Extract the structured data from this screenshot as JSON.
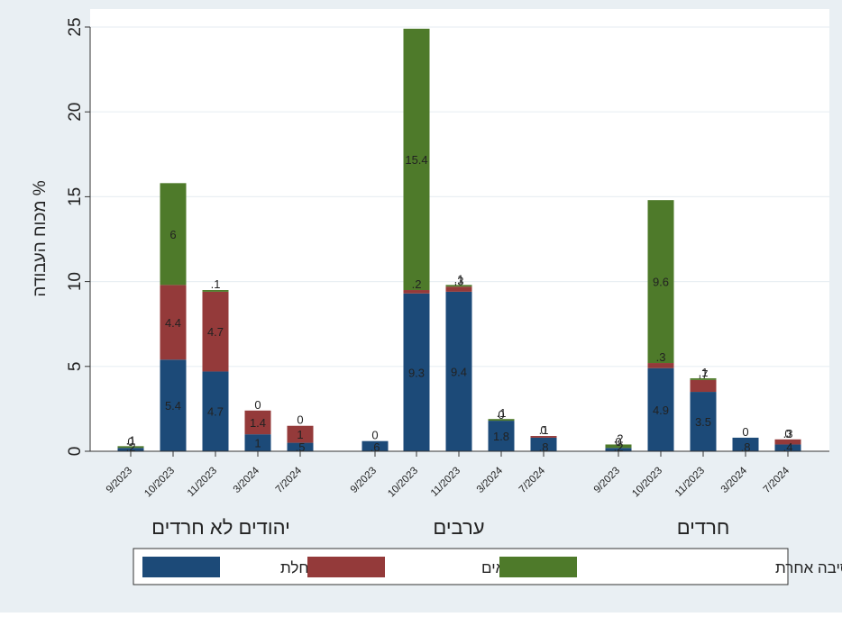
{
  "chart_data": {
    "type": "bar",
    "stacked": true,
    "ylabel": "% מכוח העבודה",
    "xlabel": "",
    "ylim": [
      0,
      25
    ],
    "yticks": [
      0,
      5,
      10,
      15,
      20,
      25
    ],
    "grid": true,
    "legend_position": "bottom",
    "colors": {
      "background": "#e9eff3",
      "plot_background": "#ffffff",
      "gridline": "#e9eff3",
      "label_text": "#222222"
    },
    "series": [
      {
        "name": "בחלת",
        "color": "#1c4a78"
      },
      {
        "name": "במילואים",
        "color": "#943a3a"
      },
      {
        "name": "נעדרים בגלל סיבה אחרת",
        "color": "#4e7a2a"
      }
    ],
    "groups": [
      {
        "name": "יהודים לא חרדים",
        "bars": [
          {
            "category": "9/2023",
            "values": [
              0.2,
              0,
              0.1
            ],
            "labels": [
              ".2",
              "0",
              ".1"
            ]
          },
          {
            "category": "10/2023",
            "values": [
              5.4,
              4.4,
              6
            ],
            "labels": [
              "5.4",
              "4.4",
              "6"
            ]
          },
          {
            "category": "11/2023",
            "values": [
              4.7,
              4.7,
              0.1
            ],
            "labels": [
              "4.7",
              "4.7",
              ".1"
            ]
          },
          {
            "category": "3/2024",
            "values": [
              1,
              1.4,
              0
            ],
            "labels": [
              "1",
              "1.4",
              "0"
            ]
          },
          {
            "category": "7/2024",
            "values": [
              0.5,
              1,
              0
            ],
            "labels": [
              ".5",
              "1",
              "0"
            ]
          }
        ]
      },
      {
        "name": "ערבים",
        "bars": [
          {
            "category": "9/2023",
            "values": [
              0.6,
              0,
              0
            ],
            "labels": [
              ".6",
              "0",
              ""
            ]
          },
          {
            "category": "10/2023",
            "values": [
              9.3,
              0.2,
              15.4
            ],
            "labels": [
              "9.3",
              ".2",
              "15.4"
            ]
          },
          {
            "category": "11/2023",
            "values": [
              9.4,
              0.3,
              0.1
            ],
            "labels": [
              "9.4",
              ".3",
              ".1"
            ]
          },
          {
            "category": "3/2024",
            "values": [
              1.8,
              0,
              0.1
            ],
            "labels": [
              "1.8",
              "0",
              ".1"
            ]
          },
          {
            "category": "7/2024",
            "values": [
              0.8,
              0.1,
              0
            ],
            "labels": [
              ".8",
              ".1",
              "0"
            ]
          }
        ]
      },
      {
        "name": "חרדים",
        "bars": [
          {
            "category": "9/2023",
            "values": [
              0.2,
              0,
              0.2
            ],
            "labels": [
              ".2",
              "0",
              ".2"
            ]
          },
          {
            "category": "10/2023",
            "values": [
              4.9,
              0.3,
              9.6
            ],
            "labels": [
              "4.9",
              ".3",
              "9.6"
            ]
          },
          {
            "category": "11/2023",
            "values": [
              3.5,
              0.7,
              0.1
            ],
            "labels": [
              "3.5",
              ".7",
              ".1"
            ]
          },
          {
            "category": "3/2024",
            "values": [
              0.8,
              0,
              0
            ],
            "labels": [
              ".8",
              "0",
              ""
            ]
          },
          {
            "category": "7/2024",
            "values": [
              0.4,
              0.3,
              0
            ],
            "labels": [
              ".4",
              ".3",
              "0"
            ]
          }
        ]
      }
    ]
  }
}
